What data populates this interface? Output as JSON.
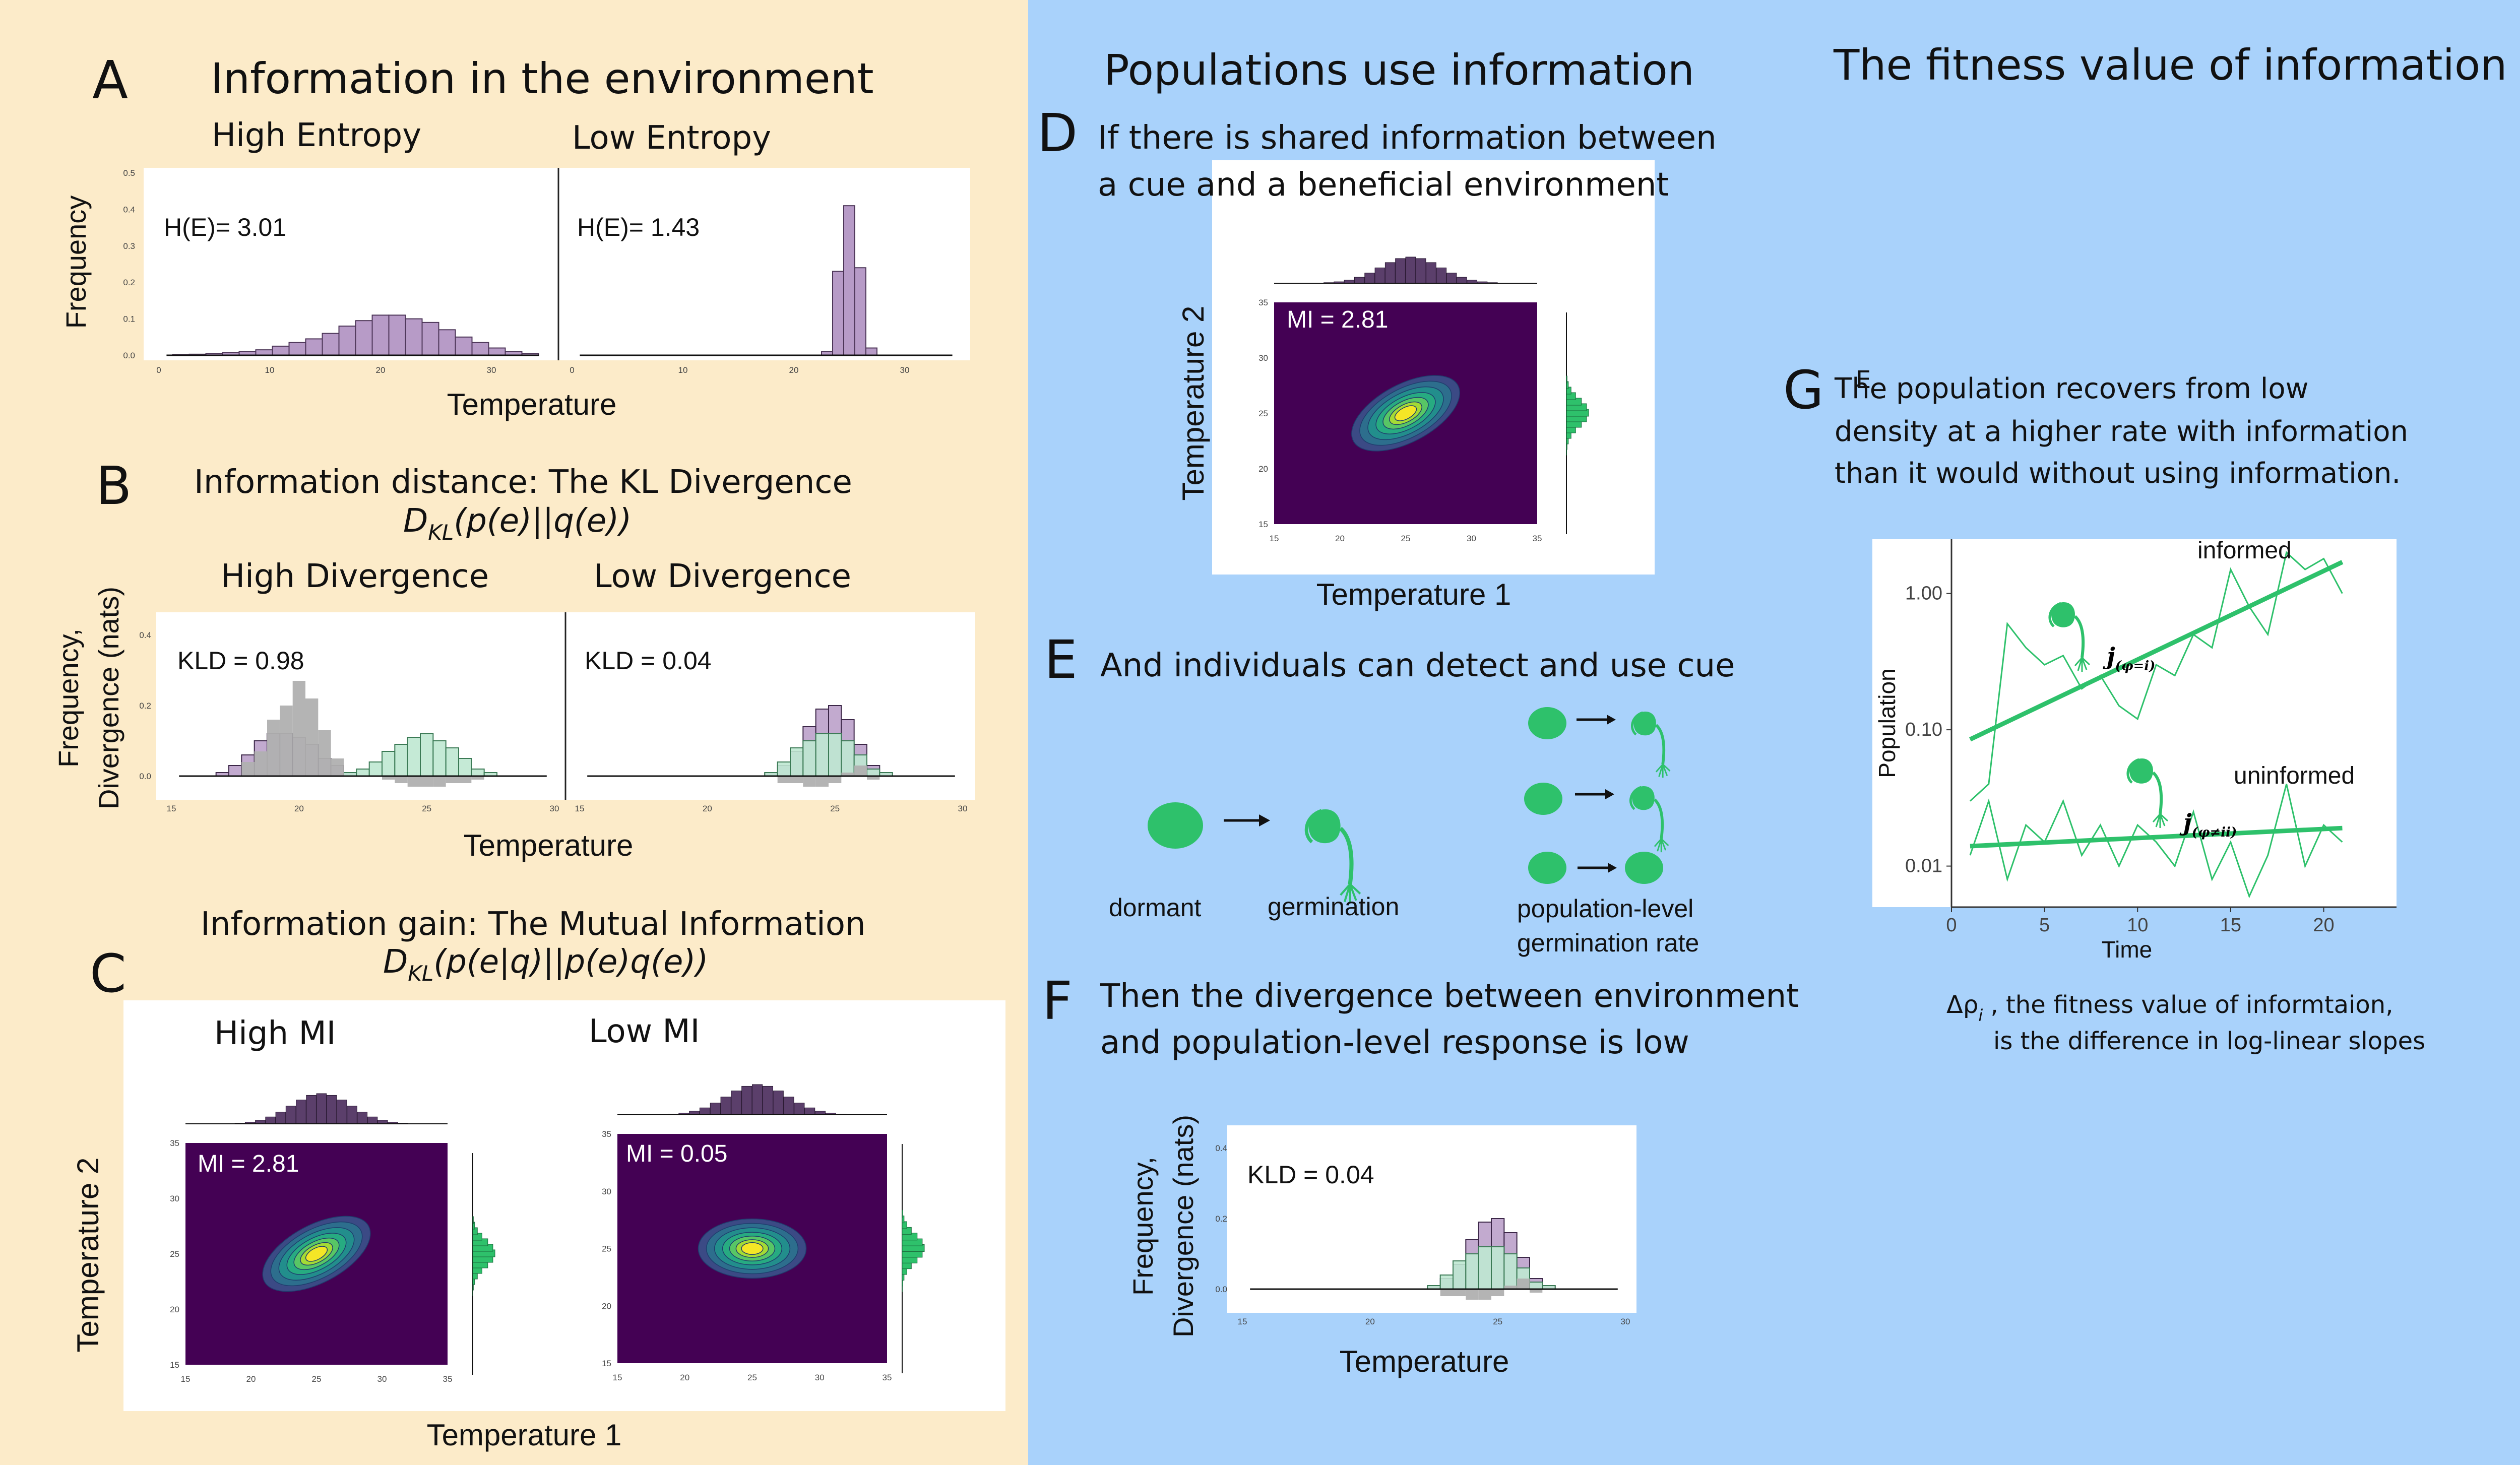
{
  "colors": {
    "left_bg": "#fcebc9",
    "right_bg": "#a9d2fb",
    "purple": "#b79bc7",
    "dark_purple": "#5b3f6b",
    "green": "#2ec16b",
    "light_green": "#bfe8d1",
    "grey": "#b0b0b0",
    "viridis_bg": "#440154"
  },
  "icons": [
    "seed-icon",
    "seedling-icon",
    "arrow-icon"
  ],
  "panel_a": {
    "letter": "A",
    "title": "Information in the environment",
    "left_label": "High Entropy",
    "right_label": "Low Entropy",
    "ylabel": "Frequency",
    "xlabel": "Temperature",
    "left_stat": "H(E)= 3.01",
    "right_stat": "H(E)= 1.43"
  },
  "panel_b": {
    "letter": "B",
    "title": "Information distance: The KL Divergence",
    "formula_d": "D",
    "formula_sub": "KL",
    "formula_rest": "(p(e)||q(e))",
    "left_label": "High Divergence",
    "right_label": "Low Divergence",
    "ylabel1": "Frequency,",
    "ylabel2": "Divergence (nats)",
    "xlabel": "Temperature",
    "left_stat": "KLD = 0.98",
    "right_stat": "KLD = 0.04"
  },
  "panel_c": {
    "letter": "C",
    "title": "Information gain: The Mutual Information",
    "formula_d": "D",
    "formula_sub": "KL",
    "formula_rest": "(p(e|q)||p(e)q(e))",
    "left_label": "High MI",
    "right_label": "Low MI",
    "ylabel": "Temperature 2",
    "xlabel": "Temperature 1",
    "left_stat": "MI = 2.81",
    "right_stat": "MI = 0.05"
  },
  "section_mid": {
    "title": "Populations use information"
  },
  "panel_d": {
    "letter": "D",
    "text1": "If there is shared information between",
    "text2": "a cue and a beneficial environment",
    "stat": "MI = 2.81",
    "ylabel": "Temperature 2",
    "xlabel": "Temperature 1"
  },
  "panel_e": {
    "letter": "E",
    "text": "And individuals can detect and use cue",
    "dormant": "dormant",
    "germination": "germination",
    "pop1": "population-level",
    "pop2": "germination rate"
  },
  "panel_f": {
    "letter": "F",
    "text1": "Then the divergence between  environment",
    "text2": "and population-level response is low",
    "ylabel1": "Frequency,",
    "ylabel2": "Divergence (nats)",
    "xlabel": "Temperature",
    "stat": "KLD = 0.04"
  },
  "section_right": {
    "title": "The fitness value of information"
  },
  "panel_g": {
    "letter": "G",
    "stray": "E",
    "text1": "The population recovers from low",
    "text2": "density at a higher rate with information",
    "text3": "than it would without using information.",
    "ylabel": "Population",
    "xlabel": "Time",
    "informed": "informed",
    "uninformed": "uninformed",
    "j_informed": "j",
    "j_informed_sub": "(φ=i)",
    "j_uninformed": "j",
    "j_uninformed_sub": "(φ≠ii)",
    "caption_delta": "Δρ",
    "caption_sub": "i",
    "caption1": " , the fitness value of informtaion,",
    "caption2": "is the difference in log-linear slopes"
  },
  "ticks": {
    "freq_y": [
      "0.5",
      "0.4",
      "0.3",
      "0.2",
      "0.1",
      "0.0"
    ],
    "temp_a": [
      "0",
      "10",
      "20",
      "30"
    ],
    "kld_y": [
      "0.4",
      "0.2",
      "0.0"
    ],
    "temp_b": [
      "15",
      "20",
      "25",
      "30"
    ],
    "temp2_y": [
      "35",
      "30",
      "25",
      "20",
      "15"
    ],
    "temp1_x": [
      "15",
      "20",
      "25",
      "30",
      "35"
    ],
    "pop_y": [
      "1.00",
      "0.10",
      "0.01"
    ],
    "time_x": [
      "0",
      "5",
      "10",
      "15",
      "20"
    ]
  },
  "chart_data": [
    {
      "type": "bar",
      "id": "A-high",
      "title": "High Entropy",
      "xlabel": "Temperature",
      "ylabel": "Frequency",
      "xlim": [
        0,
        35
      ],
      "ylim": [
        0,
        0.5
      ],
      "bin_width": 1.5,
      "x": [
        2,
        3.5,
        5,
        6.5,
        8,
        9.5,
        11,
        12.5,
        14,
        15.5,
        17,
        18.5,
        20,
        21.5,
        23,
        24.5,
        26,
        27.5,
        29,
        30.5,
        32,
        33.5
      ],
      "values": [
        0.002,
        0.003,
        0.005,
        0.007,
        0.01,
        0.015,
        0.025,
        0.035,
        0.045,
        0.06,
        0.08,
        0.095,
        0.11,
        0.11,
        0.1,
        0.09,
        0.07,
        0.05,
        0.035,
        0.02,
        0.01,
        0.005
      ]
    },
    {
      "type": "bar",
      "id": "A-low",
      "title": "Low Entropy",
      "xlabel": "Temperature",
      "ylabel": "Frequency",
      "xlim": [
        0,
        35
      ],
      "ylim": [
        0,
        0.5
      ],
      "bin_width": 1,
      "x": [
        23,
        24,
        25,
        26,
        27
      ],
      "values": [
        0.01,
        0.23,
        0.41,
        0.24,
        0.02
      ]
    },
    {
      "type": "bar",
      "id": "B-high",
      "title": "High Divergence",
      "xlabel": "Temperature",
      "ylabel": "Frequency, Divergence (nats)",
      "xlim": [
        15,
        30
      ],
      "ylim": [
        -0.05,
        0.45
      ],
      "bin_width": 0.5,
      "series": [
        {
          "name": "p(e)",
          "x": [
            17,
            17.5,
            18,
            18.5,
            19,
            19.5,
            20,
            20.5,
            21,
            21.5,
            22
          ],
          "values": [
            0.01,
            0.03,
            0.06,
            0.1,
            0.12,
            0.12,
            0.11,
            0.09,
            0.05,
            0.03,
            0.01
          ]
        },
        {
          "name": "q(e)",
          "x": [
            22,
            22.5,
            23,
            23.5,
            24,
            24.5,
            25,
            25.5,
            26,
            26.5,
            27,
            27.5
          ],
          "values": [
            0.01,
            0.02,
            0.04,
            0.07,
            0.09,
            0.11,
            0.12,
            0.1,
            0.08,
            0.05,
            0.02,
            0.01
          ]
        },
        {
          "name": "divergence",
          "x": [
            18,
            18.5,
            19,
            19.5,
            20,
            20.5,
            21,
            21.5,
            23.5,
            24,
            24.5,
            25,
            25.5,
            26,
            26.5,
            27
          ],
          "values": [
            0.04,
            0.07,
            0.16,
            0.2,
            0.27,
            0.22,
            0.13,
            0.05,
            -0.01,
            -0.02,
            -0.03,
            -0.03,
            -0.03,
            -0.02,
            -0.02,
            -0.01
          ]
        }
      ]
    },
    {
      "type": "bar",
      "id": "B-low",
      "title": "Low Divergence",
      "xlabel": "Temperature",
      "ylabel": "Frequency, Divergence (nats)",
      "xlim": [
        15,
        30
      ],
      "ylim": [
        -0.05,
        0.45
      ],
      "bin_width": 0.5,
      "series": [
        {
          "name": "p(e)",
          "x": [
            22.5,
            23,
            23.5,
            24,
            24.5,
            25,
            25.5,
            26,
            26.5,
            27
          ],
          "values": [
            0.01,
            0.03,
            0.07,
            0.14,
            0.19,
            0.2,
            0.16,
            0.09,
            0.03,
            0.01
          ]
        },
        {
          "name": "q(e)",
          "x": [
            22.5,
            23,
            23.5,
            24,
            24.5,
            25,
            25.5,
            26,
            26.5,
            27
          ],
          "values": [
            0.01,
            0.04,
            0.08,
            0.1,
            0.12,
            0.12,
            0.1,
            0.06,
            0.02,
            0.01
          ]
        },
        {
          "name": "divergence",
          "x": [
            23,
            23.5,
            24,
            24.5,
            25,
            25.5,
            26,
            26.5
          ],
          "values": [
            -0.02,
            -0.02,
            -0.03,
            -0.03,
            -0.02,
            0.01,
            0.03,
            -0.01
          ]
        }
      ]
    },
    {
      "type": "heatmap",
      "id": "C-high",
      "title": "High MI",
      "xlabel": "Temperature 1",
      "ylabel": "Temperature 2",
      "xlim": [
        15,
        35
      ],
      "ylim": [
        15,
        35
      ],
      "center": [
        25,
        25
      ],
      "spread": [
        4.5,
        2.2
      ],
      "orientation": "correlated"
    },
    {
      "type": "heatmap",
      "id": "C-low",
      "title": "Low MI",
      "xlabel": "Temperature 1",
      "ylabel": "Temperature 2",
      "xlim": [
        15,
        35
      ],
      "ylim": [
        15,
        35
      ],
      "center": [
        25,
        25
      ],
      "spread": [
        4,
        2.2
      ],
      "orientation": "uncorrelated"
    },
    {
      "type": "heatmap",
      "id": "D",
      "xlabel": "Temperature 1",
      "ylabel": "Temperature 2",
      "xlim": [
        15,
        35
      ],
      "ylim": [
        15,
        35
      ],
      "center": [
        25,
        25
      ],
      "spread": [
        4.5,
        2.2
      ],
      "orientation": "correlated"
    },
    {
      "type": "bar",
      "id": "F",
      "xlabel": "Temperature",
      "ylabel": "Frequency, Divergence (nats)",
      "xlim": [
        15,
        30
      ],
      "ylim": [
        -0.05,
        0.45
      ],
      "bin_width": 0.5,
      "series": [
        {
          "name": "p(e)",
          "x": [
            22.5,
            23,
            23.5,
            24,
            24.5,
            25,
            25.5,
            26,
            26.5,
            27
          ],
          "values": [
            0.01,
            0.03,
            0.07,
            0.14,
            0.19,
            0.2,
            0.16,
            0.09,
            0.03,
            0.01
          ]
        },
        {
          "name": "q(e)",
          "x": [
            22.5,
            23,
            23.5,
            24,
            24.5,
            25,
            25.5,
            26,
            26.5,
            27
          ],
          "values": [
            0.01,
            0.04,
            0.08,
            0.1,
            0.12,
            0.12,
            0.1,
            0.06,
            0.02,
            0.01
          ]
        },
        {
          "name": "divergence",
          "x": [
            23,
            23.5,
            24,
            24.5,
            25,
            25.5,
            26,
            26.5
          ],
          "values": [
            -0.02,
            -0.02,
            -0.03,
            -0.03,
            -0.02,
            0.01,
            0.03,
            -0.01
          ]
        }
      ]
    },
    {
      "type": "line",
      "id": "G",
      "xlabel": "Time",
      "ylabel": "Population",
      "xlim": [
        0,
        22
      ],
      "ylim": [
        0.005,
        2.5
      ],
      "yscale": "log",
      "series": [
        {
          "name": "informed",
          "x": [
            1,
            2,
            3,
            4,
            5,
            6,
            7,
            8,
            9,
            10,
            11,
            12,
            13,
            14,
            15,
            16,
            17,
            18,
            19,
            20,
            21
          ],
          "values": [
            0.03,
            0.04,
            0.6,
            0.4,
            0.3,
            0.35,
            0.2,
            0.25,
            0.15,
            0.12,
            0.3,
            0.25,
            0.5,
            0.4,
            1.5,
            0.8,
            0.5,
            2.0,
            1.5,
            1.8,
            1.0
          ]
        },
        {
          "name": "informed trend",
          "x": [
            1,
            21
          ],
          "values": [
            0.085,
            1.7
          ]
        },
        {
          "name": "uninformed",
          "x": [
            1,
            2,
            3,
            4,
            5,
            6,
            7,
            8,
            9,
            10,
            11,
            12,
            13,
            14,
            15,
            16,
            17,
            18,
            19,
            20,
            21
          ],
          "values": [
            0.012,
            0.03,
            0.008,
            0.02,
            0.015,
            0.03,
            0.012,
            0.02,
            0.01,
            0.02,
            0.015,
            0.01,
            0.025,
            0.008,
            0.015,
            0.006,
            0.012,
            0.04,
            0.01,
            0.02,
            0.015
          ]
        },
        {
          "name": "uninformed trend",
          "x": [
            1,
            21
          ],
          "values": [
            0.014,
            0.019
          ]
        }
      ]
    }
  ]
}
